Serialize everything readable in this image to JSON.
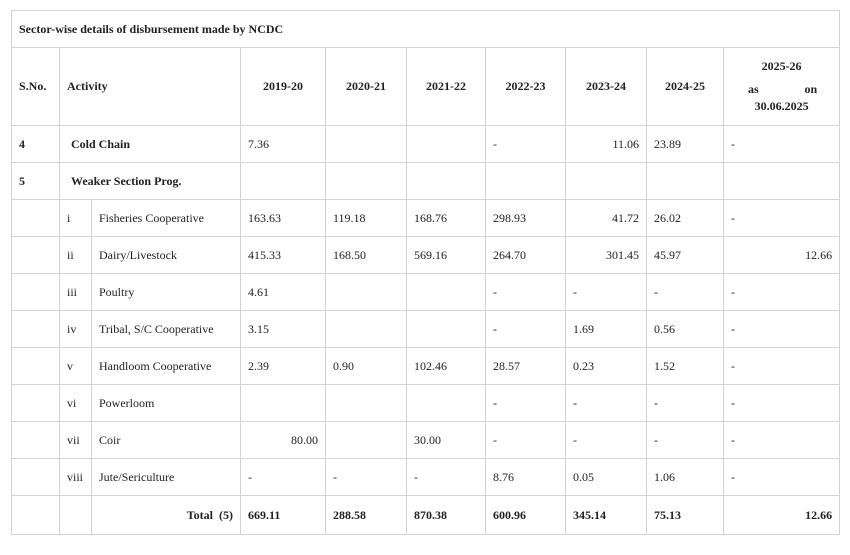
{
  "title": "Sector-wise details of disbursement made by NCDC",
  "headers": {
    "sno": "S.No.",
    "activity": "Activity",
    "y2019": "2019-20",
    "y2020": "2020-21",
    "y2021": "2021-22",
    "y2022": "2022-23",
    "y2023": "2023-24",
    "y2024": "2024-25",
    "y2025_line1": "2025-26",
    "y2025_as": "as",
    "y2025_on": "on",
    "y2025_date": "30.06.2025"
  },
  "rows": {
    "cold_chain": {
      "sno": "4",
      "activity": "Cold Chain",
      "y2019": "7.36",
      "y2020": "",
      "y2021": "",
      "y2022": "-",
      "y2023": "11.06",
      "y2024": "23.89",
      "y2025": "-"
    },
    "weaker": {
      "sno": "5",
      "activity": "Weaker Section Prog."
    },
    "fisheries": {
      "num": "i",
      "activity": "Fisheries Cooperative",
      "y2019": "163.63",
      "y2020": "119.18",
      "y2021": "168.76",
      "y2022": "298.93",
      "y2023": "41.72",
      "y2024": "26.02",
      "y2025": "-"
    },
    "dairy": {
      "num": "ii",
      "activity": "Dairy/Livestock",
      "y2019": "415.33",
      "y2020": "168.50",
      "y2021": "569.16",
      "y2022": "264.70",
      "y2023": "301.45",
      "y2024": "45.97",
      "y2025": "12.66"
    },
    "poultry": {
      "num": "iii",
      "activity": "Poultry",
      "y2019": "4.61",
      "y2020": "",
      "y2021": "",
      "y2022": "-",
      "y2023": "-",
      "y2024": "-",
      "y2025": "-"
    },
    "tribal": {
      "num": "iv",
      "activity": "Tribal, S/C Cooperative",
      "y2019": "3.15",
      "y2020": "",
      "y2021": "",
      "y2022": "-",
      "y2023": "1.69",
      "y2024": "0.56",
      "y2025": "-"
    },
    "handloom": {
      "num": "v",
      "activity": "Handloom Cooperative",
      "y2019": "2.39",
      "y2020": "0.90",
      "y2021": "102.46",
      "y2022": "28.57",
      "y2023": "0.23",
      "y2024": "1.52",
      "y2025": "-"
    },
    "powerloom": {
      "num": "vi",
      "activity": "Powerloom",
      "y2019": "",
      "y2020": "",
      "y2021": "",
      "y2022": "-",
      "y2023": "-",
      "y2024": "-",
      "y2025": "-"
    },
    "coir": {
      "num": "vii",
      "activity": "Coir",
      "y2019": "80.00",
      "y2020": "",
      "y2021": "30.00",
      "y2022": "-",
      "y2023": "-",
      "y2024": "-",
      "y2025": "-"
    },
    "jute": {
      "num": "viii",
      "activity": "Jute/Sericulture",
      "y2019": "-",
      "y2020": "-",
      "y2021": "-",
      "y2022": "8.76",
      "y2023": "0.05",
      "y2024": "1.06",
      "y2025": "-"
    }
  },
  "total": {
    "label": "Total  (5)",
    "y2019": "669.11",
    "y2020": "288.58",
    "y2021": "870.38",
    "y2022": "600.96",
    "y2023": "345.14",
    "y2024": "75.13",
    "y2025": "12.66"
  }
}
